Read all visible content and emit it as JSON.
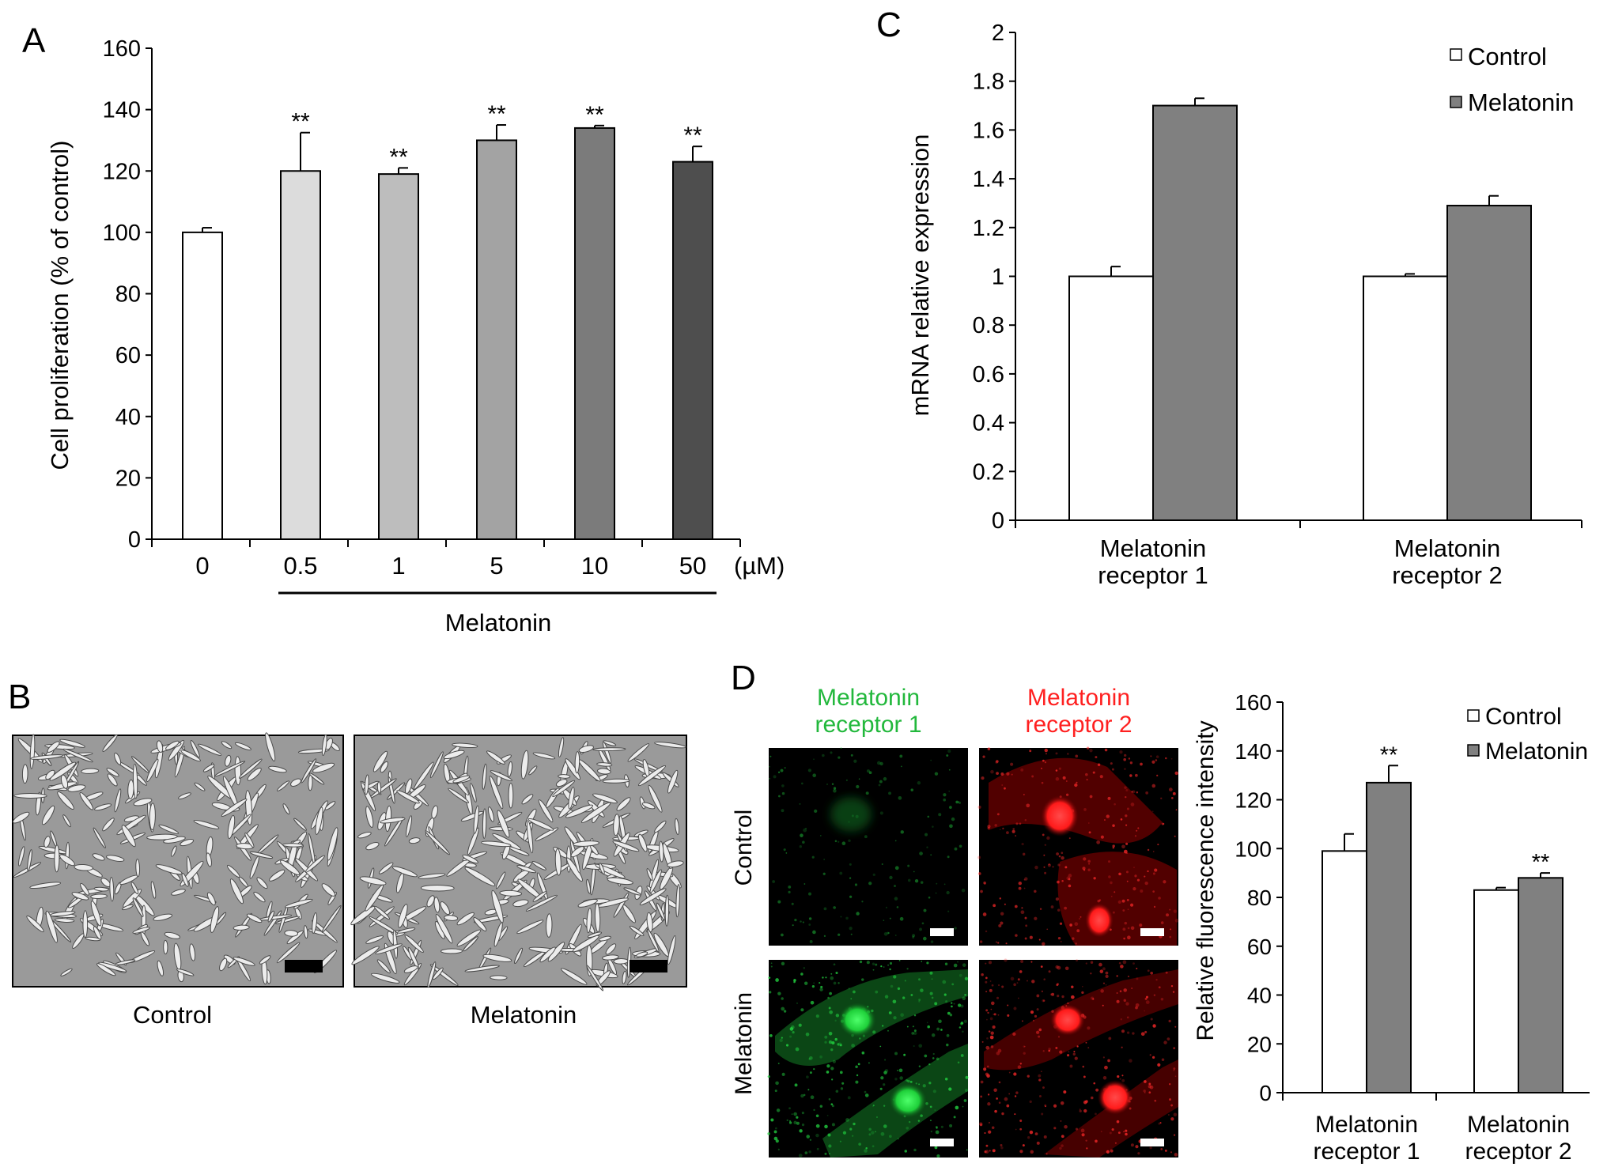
{
  "panels": {
    "A": "A",
    "B": "B",
    "C": "C",
    "D": "D"
  },
  "colors": {
    "panel_a_bars": [
      "#ffffff",
      "#dcdcdc",
      "#bdbdbd",
      "#a3a3a3",
      "#7b7b7b",
      "#4e4e4e"
    ],
    "control": "#ffffff",
    "melatonin": "#808080",
    "green_stain": "#22c83c",
    "red_stain": "#ff2020"
  },
  "chart_data": [
    {
      "panel": "A",
      "type": "bar",
      "ylabel": "Cell proliferation (% of control)",
      "ylim": [
        0,
        160
      ],
      "yticks": [
        "0",
        "20",
        "40",
        "60",
        "80",
        "100",
        "120",
        "140",
        "160"
      ],
      "categories": [
        "0",
        "0.5",
        "1",
        "5",
        "10",
        "50"
      ],
      "unit_label": "(µM)",
      "group_label": "Melatonin",
      "values": [
        100,
        120,
        119,
        130,
        134,
        123
      ],
      "errors": [
        1.5,
        12.5,
        2,
        5,
        0.8,
        5
      ],
      "significance": [
        "",
        "**",
        "**",
        "**",
        "**",
        "**"
      ]
    },
    {
      "panel": "C",
      "type": "bar",
      "ylabel": "mRNA relative expression",
      "ylim": [
        0,
        2
      ],
      "yticks": [
        "0",
        "0.2",
        "0.4",
        "0.6",
        "0.8",
        "1",
        "1.2",
        "1.4",
        "1.6",
        "1.8",
        "2"
      ],
      "categories": [
        "Melatonin receptor 1",
        "Melatonin receptor 2"
      ],
      "category_lines": [
        [
          "Melatonin",
          "receptor 1"
        ],
        [
          "Melatonin",
          "receptor 2"
        ]
      ],
      "series": [
        {
          "name": "Control",
          "values": [
            1.0,
            1.0
          ],
          "errors": [
            0.04,
            0.01
          ]
        },
        {
          "name": "Melatonin",
          "values": [
            1.7,
            1.29
          ],
          "errors": [
            0.03,
            0.04
          ]
        }
      ],
      "legend": "top-right"
    },
    {
      "panel": "D",
      "type": "bar",
      "ylabel": "Relative fluorescence intensity",
      "ylim": [
        0,
        160
      ],
      "yticks": [
        "0",
        "20",
        "40",
        "60",
        "80",
        "100",
        "120",
        "140",
        "160"
      ],
      "categories": [
        "Melatonin receptor 1",
        "Melatonin receptor 2"
      ],
      "category_lines": [
        [
          "Melatonin",
          "receptor 1"
        ],
        [
          "Melatonin",
          "receptor 2"
        ]
      ],
      "series": [
        {
          "name": "Control",
          "values": [
            99,
            83
          ],
          "errors": [
            7,
            1
          ]
        },
        {
          "name": "Melatonin",
          "values": [
            127,
            88
          ],
          "errors": [
            7,
            2
          ]
        }
      ],
      "significance": [
        [
          "",
          "**"
        ],
        [
          "",
          "**"
        ]
      ],
      "legend": "top-right"
    }
  ],
  "panel_b": {
    "labels": [
      "Control",
      "Melatonin"
    ]
  },
  "panel_d_images": {
    "col_titles": [
      [
        "Melatonin",
        "receptor 1"
      ],
      [
        "Melatonin",
        "receptor 2"
      ]
    ],
    "row_labels": [
      "Control",
      "Melatonin"
    ]
  }
}
